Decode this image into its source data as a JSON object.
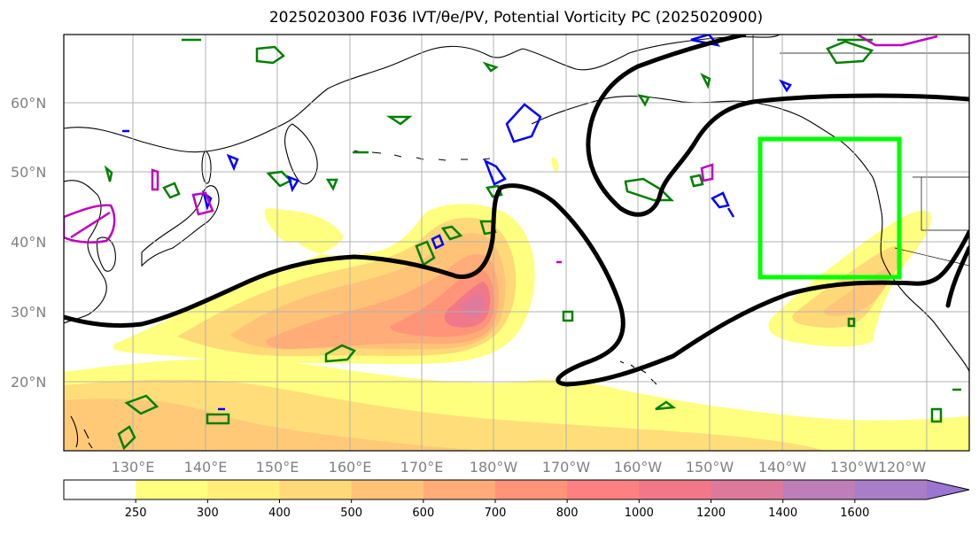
{
  "title": "2025020300 F036 IVT/θe/PV, Potential Vorticity PC (2025020900)",
  "map": {
    "lat_labels": [
      "60°N",
      "50°N",
      "40°N",
      "30°N",
      "20°N"
    ],
    "lon_labels": [
      "130°E",
      "140°E",
      "150°E",
      "160°E",
      "170°E",
      "180°W",
      "170°W",
      "160°W",
      "150°W",
      "140°W",
      "130°W",
      "120°W"
    ],
    "highlight_box_color": "#00ff00",
    "contour_color": "#000000",
    "pv_contour_colors": {
      "green": "#008000",
      "blue": "#0000ff",
      "magenta": "#bf00bf"
    }
  },
  "colorbar": {
    "ticks": [
      "250",
      "300",
      "400",
      "500",
      "600",
      "700",
      "800",
      "1000",
      "1200",
      "1400",
      "1600"
    ],
    "colors": [
      "#ffffff",
      "#ffff7f",
      "#ffef78",
      "#ffd878",
      "#ffc378",
      "#ffac78",
      "#ff9478",
      "#ff8080",
      "#f07888",
      "#dd7a9c",
      "#bd7eba",
      "#a87ec8",
      "#9a76d0"
    ]
  }
}
